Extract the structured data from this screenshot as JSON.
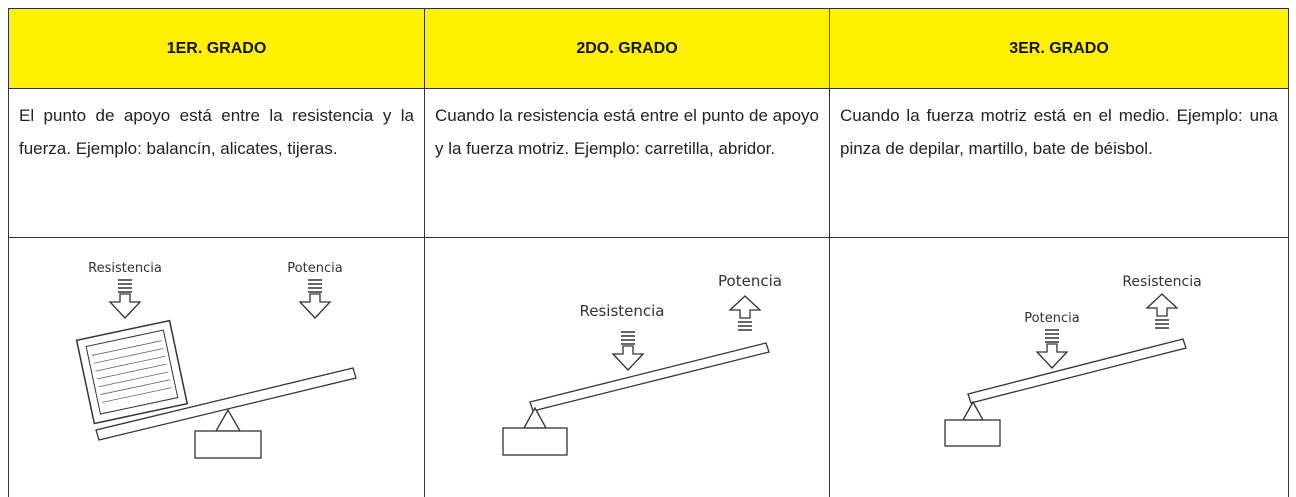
{
  "table": {
    "headers": [
      "1ER. GRADO",
      "2DO. GRADO",
      "3ER. GRADO"
    ],
    "descriptions": [
      "El punto de apoyo está entre la resistencia y la fuerza. Ejemplo: balancín, alicates, tijeras.",
      "Cuando la resistencia está entre el punto de apoyo y la fuerza motriz. Ejemplo: carretilla, abridor.",
      "Cuando la fuerza motriz está en el medio. Ejemplo: una pinza de depilar, martillo, bate de béisbol."
    ],
    "diagrams": [
      {
        "resistance": "Resistencia",
        "power": "Potencia"
      },
      {
        "resistance": "Resistencia",
        "power": "Potencia"
      },
      {
        "resistance": "Resistencia",
        "power": "Potencia"
      }
    ]
  }
}
